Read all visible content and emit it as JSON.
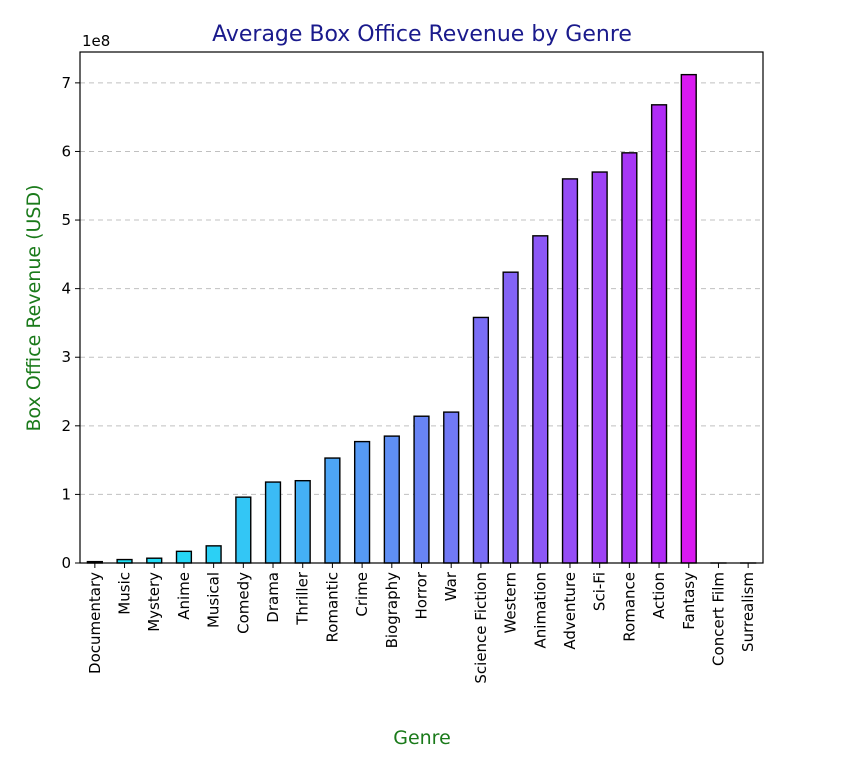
{
  "chart_data": {
    "type": "bar",
    "title": "Average Box Office Revenue by Genre",
    "xlabel": "Genre",
    "ylabel": "Box Office Revenue (USD)",
    "y_offset_label": "1e8",
    "ylim": [
      0,
      7.45
    ],
    "y_ticks": [
      0,
      1,
      2,
      3,
      4,
      5,
      6,
      7
    ],
    "y_scale_note": "values in units of 1e8 USD",
    "grid": "horizontal dashed",
    "categories": [
      "Documentary",
      "Music",
      "Mystery",
      "Anime",
      "Musical",
      "Comedy",
      "Drama",
      "Thriller",
      "Romantic",
      "Crime",
      "Biography",
      "Horror",
      "War",
      "Science Fiction",
      "Western",
      "Animation",
      "Adventure",
      "Sci-Fi",
      "Romance",
      "Action",
      "Fantasy",
      "Concert Film",
      "Surrealism"
    ],
    "values": [
      0.02,
      0.05,
      0.07,
      0.17,
      0.25,
      0.96,
      1.18,
      1.2,
      1.53,
      1.77,
      1.85,
      2.14,
      2.2,
      3.58,
      4.24,
      4.77,
      5.6,
      5.7,
      5.98,
      6.68,
      7.12,
      0.0,
      0.0
    ],
    "colors": [
      "#1ae5f5",
      "#1ee0f5",
      "#22dbf5",
      "#26d6f5",
      "#2bd0f5",
      "#33c6f5",
      "#3bbbf5",
      "#44b0f5",
      "#4da5f5",
      "#569af5",
      "#5f8ff5",
      "#6884f5",
      "#7179f5",
      "#7a6ef5",
      "#8363f5",
      "#8c58f5",
      "#954df5",
      "#9e42f5",
      "#a737f5",
      "#b02cf5",
      "#d91af0",
      "#e812ee",
      "#f00eea"
    ],
    "title_color": "#1a1a8c",
    "label_color": "#1a7a1a"
  }
}
